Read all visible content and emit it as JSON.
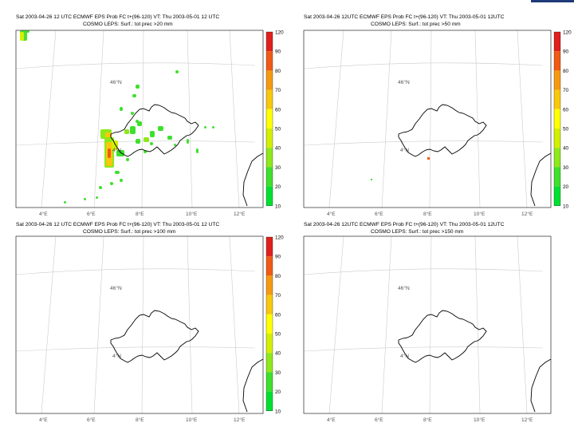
{
  "panels": [
    {
      "id": "p1",
      "line1": "Sat 2003-04-26 12 UTC ECMWF EPS Prob FC t+(96-120) VT: Thu 2003-05-01 12 UTC",
      "line2": "COSMO LEPS: Surf.: tot prec >20 mm",
      "has_precip": true
    },
    {
      "id": "p2",
      "line1": "Sat 2003-04-26 12UTC ECMWF EPS Prob FC t+(96-120) VT: Thu 2003-05-01 12UTC",
      "line2": "COSMO LEPS: Surf.: tot prec >50 mm",
      "has_precip": false
    },
    {
      "id": "p3",
      "line1": "Sat 2003-04-26 12 UTC ECMWF EPS Prob FC t+(96-120) VT: Thu 2003-05-01 12 UTC",
      "line2": "COSMO LEPS: Surf.: tot prec >100 mm",
      "has_precip": false
    },
    {
      "id": "p4",
      "line1": "Sat 2003-04-26 12UTC ECMWF EPS Prob FC t+(96-120) VT: Thu 2003-05-01 12UTC",
      "line2": "COSMO LEPS: Surf.: tot prec >150 mm",
      "has_precip": false
    }
  ],
  "lat_label": "46°N",
  "lat_label_small": "4°N",
  "lon_labels": [
    "4°E",
    "6°E",
    "8°E",
    "10°E",
    "12°E"
  ],
  "colorbar": {
    "ticks": [
      "120",
      "90",
      "80",
      "70",
      "60",
      "50",
      "40",
      "30",
      "20",
      "10"
    ],
    "colors": [
      "#e0201c",
      "#f05a14",
      "#f59a10",
      "#f8c80c",
      "#ffff00",
      "#d2f000",
      "#8ee81a",
      "#3ee02c",
      "#00e030"
    ]
  }
}
